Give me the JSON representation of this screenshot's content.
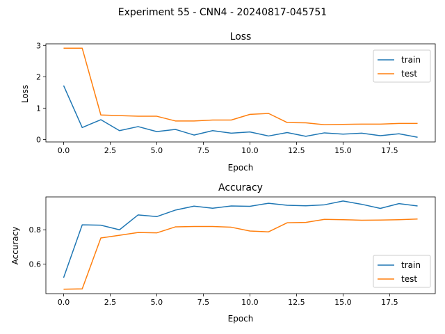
{
  "figure": {
    "title": "Experiment 55 - CNN4 - 20240817-045751"
  },
  "chart_data": [
    {
      "type": "line",
      "title": "Loss",
      "xlabel": "Epoch",
      "ylabel": "Loss",
      "xlim": [
        -0.95,
        19.95
      ],
      "ylim": [
        -0.08,
        3.05
      ],
      "xticks": [
        0.0,
        2.5,
        5.0,
        7.5,
        10.0,
        12.5,
        15.0,
        17.5
      ],
      "xtick_labels": [
        "0.0",
        "2.5",
        "5.0",
        "7.5",
        "10.0",
        "12.5",
        "15.0",
        "17.5"
      ],
      "yticks": [
        0,
        1,
        2,
        3
      ],
      "ytick_labels": [
        "0",
        "1",
        "2",
        "3"
      ],
      "legend": "top-right",
      "grid": false,
      "x": [
        0,
        1,
        2,
        3,
        4,
        5,
        6,
        7,
        8,
        9,
        10,
        11,
        12,
        13,
        14,
        15,
        16,
        17,
        18,
        19
      ],
      "series": [
        {
          "name": "train",
          "color": "#1f77b4",
          "values": [
            1.72,
            0.38,
            0.63,
            0.28,
            0.41,
            0.25,
            0.32,
            0.14,
            0.28,
            0.2,
            0.24,
            0.11,
            0.22,
            0.1,
            0.21,
            0.17,
            0.2,
            0.12,
            0.18,
            0.07
          ]
        },
        {
          "name": "test",
          "color": "#ff7f0e",
          "values": [
            2.91,
            2.91,
            0.78,
            0.76,
            0.74,
            0.74,
            0.59,
            0.59,
            0.62,
            0.62,
            0.8,
            0.83,
            0.54,
            0.53,
            0.47,
            0.48,
            0.49,
            0.49,
            0.51,
            0.51
          ]
        }
      ]
    },
    {
      "type": "line",
      "title": "Accuracy",
      "xlabel": "Epoch",
      "ylabel": "Accuracy",
      "xlim": [
        -0.95,
        19.95
      ],
      "ylim": [
        0.427,
        0.992
      ],
      "xticks": [
        0.0,
        2.5,
        5.0,
        7.5,
        10.0,
        12.5,
        15.0,
        17.5
      ],
      "xtick_labels": [
        "0.0",
        "2.5",
        "5.0",
        "7.5",
        "10.0",
        "12.5",
        "15.0",
        "17.5"
      ],
      "yticks": [
        0.6,
        0.8
      ],
      "ytick_labels": [
        "0.6",
        "0.8"
      ],
      "legend": "bottom-right",
      "grid": false,
      "x": [
        0,
        1,
        2,
        3,
        4,
        5,
        6,
        7,
        8,
        9,
        10,
        11,
        12,
        13,
        14,
        15,
        16,
        17,
        18,
        19
      ],
      "series": [
        {
          "name": "train",
          "color": "#1f77b4",
          "values": [
            0.52,
            0.829,
            0.827,
            0.8,
            0.887,
            0.877,
            0.915,
            0.938,
            0.926,
            0.939,
            0.937,
            0.955,
            0.943,
            0.94,
            0.946,
            0.968,
            0.949,
            0.925,
            0.953,
            0.939
          ]
        },
        {
          "name": "test",
          "color": "#ff7f0e",
          "values": [
            0.453,
            0.455,
            0.752,
            0.768,
            0.784,
            0.782,
            0.817,
            0.819,
            0.819,
            0.815,
            0.793,
            0.788,
            0.841,
            0.843,
            0.861,
            0.859,
            0.856,
            0.857,
            0.859,
            0.863
          ]
        }
      ]
    }
  ]
}
